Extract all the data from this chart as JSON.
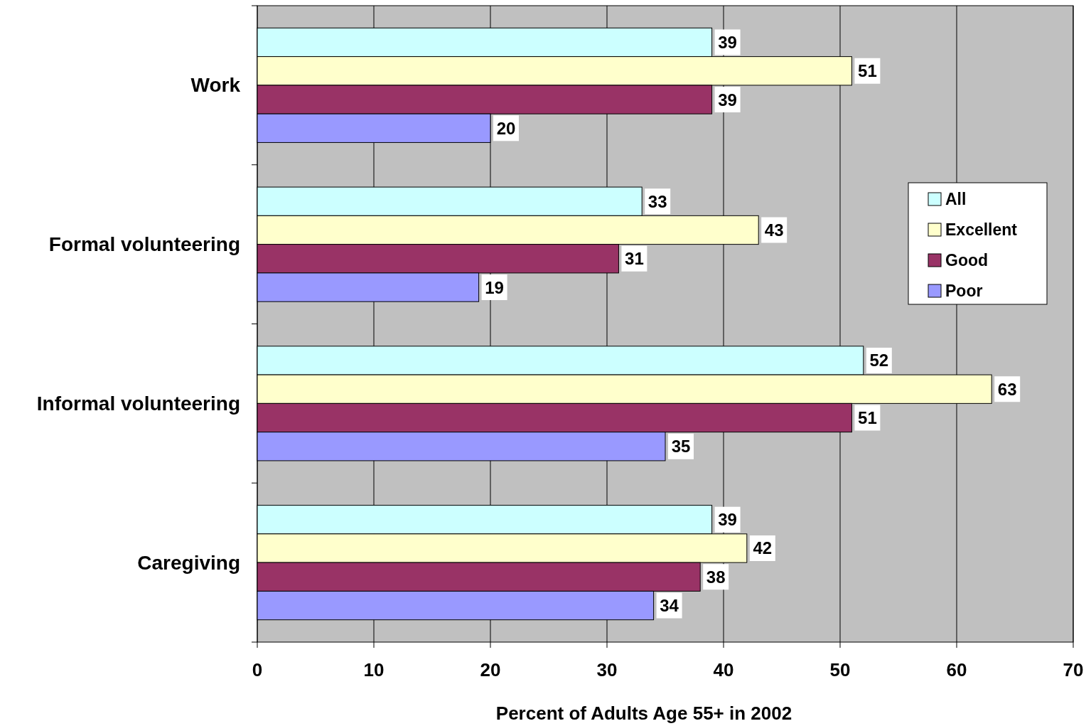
{
  "chart_data": {
    "type": "bar",
    "orientation": "horizontal",
    "xlabel": "Percent of Adults Age 55+ in 2002",
    "categories": [
      "Work",
      "Formal volunteering",
      "Informal volunteering",
      "Caregiving"
    ],
    "series": [
      {
        "name": "All",
        "color": "#ccffff",
        "values": [
          39,
          33,
          52,
          39
        ]
      },
      {
        "name": "Excellent",
        "color": "#ffffcc",
        "values": [
          51,
          43,
          63,
          42
        ]
      },
      {
        "name": "Good",
        "color": "#993366",
        "values": [
          39,
          31,
          51,
          38
        ]
      },
      {
        "name": "Poor",
        "color": "#9999ff",
        "values": [
          20,
          19,
          35,
          34
        ]
      }
    ],
    "xlim": [
      0,
      70
    ],
    "xticks": [
      0,
      10,
      20,
      30,
      40,
      50,
      60,
      70
    ],
    "grid": "x",
    "legend": "right",
    "data_labels": true
  }
}
